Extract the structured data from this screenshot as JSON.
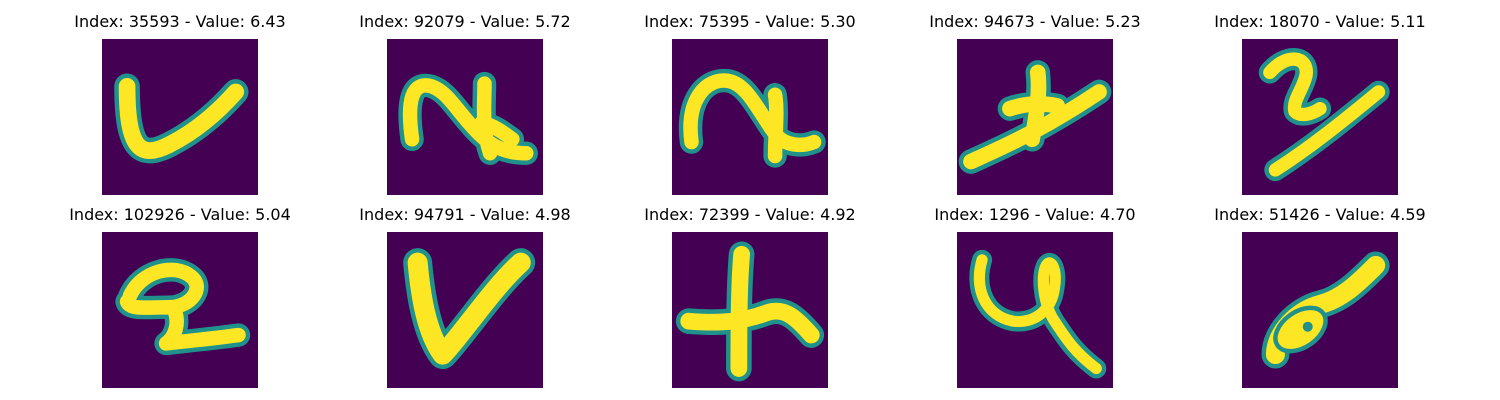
{
  "colormap": {
    "background": "#440154",
    "edge": "#21918c",
    "stroke": "#fde725"
  },
  "panels": [
    {
      "index": 35593,
      "value": 6.43,
      "title": "Index: 35593 - Value: 6.43",
      "glyph": "curved-v-stroke"
    },
    {
      "index": 92079,
      "value": 5.72,
      "title": "Index: 92079 - Value: 5.72",
      "glyph": "hook-stroke"
    },
    {
      "index": 75395,
      "value": 5.3,
      "title": "Index: 75395 - Value: 5.30",
      "glyph": "arch-stroke"
    },
    {
      "index": 94673,
      "value": 5.23,
      "title": "Index: 94673 - Value: 5.23",
      "glyph": "diagonal-z-stroke"
    },
    {
      "index": 18070,
      "value": 5.11,
      "title": "Index: 18070 - Value: 5.11",
      "glyph": "slanted-2-stroke"
    },
    {
      "index": 102926,
      "value": 5.04,
      "title": "Index: 102926 - Value: 5.04",
      "glyph": "digit-2-stroke"
    },
    {
      "index": 94791,
      "value": 4.98,
      "title": "Index: 94791 - Value: 4.98",
      "glyph": "v-stroke"
    },
    {
      "index": 72399,
      "value": 4.92,
      "title": "Index: 72399 - Value: 4.92",
      "glyph": "plus-stroke"
    },
    {
      "index": 1296,
      "value": 4.7,
      "title": "Index: 1296 - Value: 4.70",
      "glyph": "looped-y-stroke"
    },
    {
      "index": 51426,
      "value": 4.59,
      "title": "Index: 51426 - Value: 4.59",
      "glyph": "slanted-loop-stroke"
    }
  ]
}
